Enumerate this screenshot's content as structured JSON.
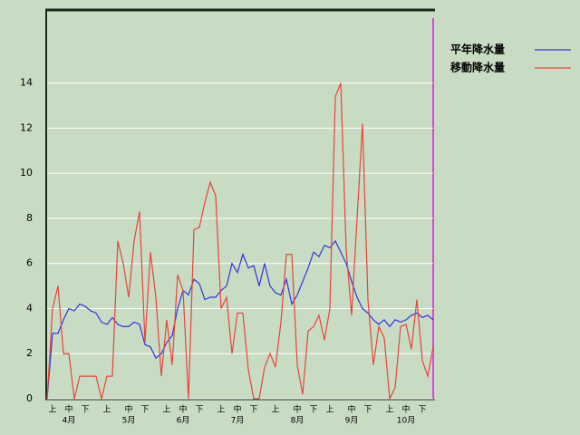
{
  "chart_data": {
    "type": "line",
    "categories": [
      null,
      "上",
      null,
      null,
      "中",
      null,
      null,
      "下",
      null,
      null,
      null,
      "上",
      null,
      null,
      null,
      "中",
      null,
      null,
      "下",
      null,
      null,
      null,
      "上",
      null,
      null,
      "中",
      null,
      null,
      "下",
      null,
      null,
      null,
      "上",
      null,
      null,
      "中",
      null,
      null,
      "下",
      null,
      null,
      null,
      "上",
      null,
      null,
      null,
      "中",
      null,
      null,
      "下",
      null,
      null,
      "上",
      null,
      null,
      null,
      "中",
      null,
      null,
      "下",
      null,
      null,
      null,
      "上",
      null,
      null,
      "中",
      null,
      null,
      "下",
      null,
      null
    ],
    "month_labels": [
      null,
      null,
      null,
      null,
      "4月",
      null,
      null,
      null,
      null,
      null,
      null,
      null,
      null,
      null,
      null,
      "5月",
      null,
      null,
      null,
      null,
      null,
      null,
      null,
      null,
      null,
      "6月",
      null,
      null,
      null,
      null,
      null,
      null,
      null,
      null,
      null,
      "7月",
      null,
      null,
      null,
      null,
      null,
      null,
      null,
      null,
      null,
      null,
      "8月",
      null,
      null,
      null,
      null,
      null,
      null,
      null,
      null,
      null,
      "9月",
      null,
      null,
      null,
      null,
      null,
      null,
      null,
      null,
      null,
      "10月",
      null,
      null,
      null,
      null,
      null
    ],
    "series": [
      {
        "name": "平年降水量",
        "color": "#3333dd",
        "values": [
          0,
          2.9,
          2.9,
          3.5,
          4.0,
          3.9,
          4.2,
          4.1,
          3.9,
          3.8,
          3.4,
          3.3,
          3.6,
          3.3,
          3.2,
          3.2,
          3.4,
          3.3,
          2.4,
          2.3,
          1.8,
          2.0,
          2.5,
          2.8,
          4.0,
          4.8,
          4.6,
          5.3,
          5.1,
          4.4,
          4.5,
          4.5,
          4.8,
          5.0,
          6.0,
          5.6,
          6.4,
          5.8,
          5.9,
          5.0,
          6.0,
          5.0,
          4.7,
          4.6,
          5.3,
          4.2,
          4.6,
          5.2,
          5.8,
          6.5,
          6.3,
          6.8,
          6.7,
          7.0,
          6.5,
          6.0,
          5.2,
          4.5,
          4.0,
          3.8,
          3.5,
          3.3,
          3.5,
          3.2,
          3.5,
          3.4,
          3.5,
          3.7,
          3.8,
          3.6,
          3.7,
          3.5
        ]
      },
      {
        "name": "移動降水量",
        "color": "#e8443a",
        "values": [
          0,
          4.0,
          5.0,
          2.0,
          2.0,
          0,
          1.0,
          1.0,
          1.0,
          1.0,
          0,
          1.0,
          1.0,
          7.0,
          6.0,
          4.5,
          7.0,
          8.3,
          2.5,
          6.5,
          4.5,
          1.0,
          3.5,
          1.5,
          5.5,
          4.8,
          0,
          7.5,
          7.6,
          8.7,
          9.6,
          9.0,
          4.0,
          4.5,
          2.0,
          3.8,
          3.8,
          1.3,
          0,
          0,
          1.4,
          2.0,
          1.4,
          3.4,
          6.4,
          6.4,
          1.5,
          0.2,
          3.0,
          3.2,
          3.7,
          2.6,
          4.0,
          13.4,
          14.0,
          6.6,
          3.7,
          8.0,
          12.2,
          4.4,
          1.5,
          3.2,
          2.7,
          0,
          0.5,
          3.2,
          3.3,
          2.2,
          4.4,
          1.7,
          1.0,
          2.3
        ]
      }
    ],
    "ylim": [
      0,
      17.2
    ],
    "yticks": [
      0,
      2,
      4,
      6,
      8,
      10,
      12,
      14
    ],
    "grid": true
  }
}
